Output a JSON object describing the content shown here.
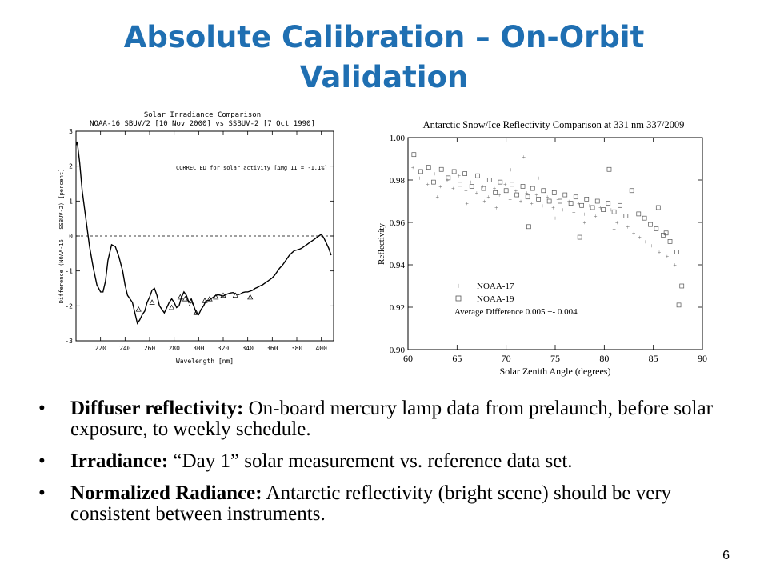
{
  "slide": {
    "title_line1": "Absolute Calibration – On-Orbit",
    "title_line2": "Validation",
    "page_number": "6"
  },
  "bullets": [
    {
      "bold": "Diffuser reflectivity:",
      "text": " On-board mercury lamp data from prelaunch, before solar exposure, to weekly schedule."
    },
    {
      "bold": "Irradiance:",
      "text": " “Day 1” solar measurement vs. reference data set."
    },
    {
      "bold": "Normalized Radiance:",
      "text": " Antarctic reflectivity (bright scene) should be very consistent between instruments."
    }
  ],
  "chart_data": [
    {
      "type": "line",
      "title": "Solar Irradiance Comparison",
      "subtitle": "NOAA-16 SBUV/2 [10 Nov 2000] vs SSBUV-2 [7 Oct 1990]",
      "annotation": "CORRECTED for solar activity [ΔMg II = -1.1%]",
      "xlabel": "Wavelength [nm]",
      "ylabel": "Difference (NOAA-16 – SSBUV-2) [percent]",
      "xlim": [
        200,
        410
      ],
      "ylim": [
        -3,
        3
      ],
      "xticks": [
        220,
        240,
        260,
        280,
        300,
        320,
        340,
        360,
        380,
        400
      ],
      "yticks": [
        3,
        2,
        1,
        0,
        -1,
        -2,
        -3
      ],
      "reference_line": 0,
      "series": [
        {
          "marker": "line",
          "x": [
            200,
            201,
            203,
            205,
            208,
            211,
            214,
            217,
            220,
            222,
            224,
            226,
            229,
            232,
            235,
            238,
            240,
            242,
            244,
            246,
            248,
            250,
            252,
            254,
            256,
            258,
            260,
            262,
            264,
            266,
            268,
            270,
            272,
            274,
            276,
            278,
            280,
            282,
            284,
            286,
            288,
            290,
            292,
            294,
            296,
            298,
            300,
            302,
            304,
            306,
            308,
            310,
            312,
            314,
            316,
            318,
            320,
            322,
            324,
            326,
            328,
            330,
            332,
            334,
            336,
            338,
            340,
            342,
            344,
            346,
            348,
            350,
            352,
            354,
            356,
            358,
            360,
            362,
            364,
            366,
            368,
            370,
            372,
            374,
            376,
            378,
            380,
            382,
            384,
            386,
            388,
            390,
            392,
            394,
            396,
            398,
            400,
            402,
            404,
            406,
            408
          ],
          "y": [
            2.6,
            2.7,
            2.1,
            1.3,
            0.5,
            -0.3,
            -0.9,
            -1.4,
            -1.6,
            -1.6,
            -1.3,
            -0.7,
            -0.25,
            -0.3,
            -0.6,
            -1.0,
            -1.4,
            -1.7,
            -1.8,
            -1.9,
            -2.2,
            -2.5,
            -2.4,
            -2.25,
            -2.15,
            -1.9,
            -1.75,
            -1.55,
            -1.5,
            -1.7,
            -2.0,
            -2.1,
            -2.2,
            -2.05,
            -1.9,
            -1.8,
            -1.9,
            -2.05,
            -2.0,
            -1.75,
            -1.6,
            -1.7,
            -1.9,
            -1.8,
            -2.0,
            -2.2,
            -2.25,
            -2.1,
            -2.0,
            -1.85,
            -1.85,
            -1.8,
            -1.75,
            -1.7,
            -1.68,
            -1.7,
            -1.72,
            -1.68,
            -1.65,
            -1.63,
            -1.62,
            -1.65,
            -1.68,
            -1.66,
            -1.62,
            -1.6,
            -1.6,
            -1.58,
            -1.55,
            -1.5,
            -1.47,
            -1.43,
            -1.4,
            -1.35,
            -1.3,
            -1.25,
            -1.2,
            -1.12,
            -1.02,
            -0.92,
            -0.85,
            -0.75,
            -0.65,
            -0.55,
            -0.48,
            -0.42,
            -0.4,
            -0.38,
            -0.35,
            -0.3,
            -0.25,
            -0.2,
            -0.15,
            -0.1,
            -0.05,
            0.0,
            0.05,
            -0.05,
            -0.2,
            -0.35,
            -0.55
          ]
        },
        {
          "marker": "triangle",
          "x": [
            251,
            262,
            278,
            285,
            289,
            294,
            298,
            305,
            309,
            314,
            320,
            330,
            342
          ],
          "y": [
            -2.1,
            -1.9,
            -2.05,
            -1.75,
            -1.8,
            -1.95,
            -2.2,
            -1.85,
            -1.8,
            -1.75,
            -1.7,
            -1.7,
            -1.75
          ]
        }
      ]
    },
    {
      "type": "scatter",
      "title": "Antarctic Snow/Ice Reflectivity Comparison at 331 nm 337/2009",
      "xlabel": "Solar Zenith Angle (degrees)",
      "ylabel": "Reflectivity",
      "xlim": [
        60,
        90
      ],
      "ylim": [
        0.9,
        1.0
      ],
      "xticks": [
        60,
        65,
        70,
        75,
        80,
        85,
        90
      ],
      "yticks": [
        "1.00",
        "0.98",
        "0.96",
        "0.94",
        "0.92",
        "0.90"
      ],
      "legend_position": "bottom-left",
      "annotation": "Average Difference  0.005 +- 0.004",
      "series": [
        {
          "name": "NOAA-17",
          "marker": "plus",
          "x": [
            60.5,
            61.2,
            62.0,
            62.7,
            63.3,
            64.0,
            64.6,
            65.2,
            65.9,
            66.4,
            67.0,
            67.6,
            68.2,
            68.8,
            69.3,
            69.9,
            70.4,
            71.0,
            71.5,
            72.1,
            72.6,
            73.1,
            73.7,
            74.2,
            74.8,
            75.3,
            75.8,
            76.4,
            76.9,
            77.4,
            78.0,
            78.5,
            79.1,
            79.6,
            80.2,
            80.7,
            81.3,
            81.8,
            82.4,
            83.0,
            83.6,
            84.2,
            84.8,
            85.6,
            86.4,
            87.2,
            63.0,
            66.0,
            69.0,
            72.0,
            75.0,
            78.0,
            81.0,
            71.8,
            73.3,
            70.5,
            67.8
          ],
          "y": [
            0.986,
            0.981,
            0.978,
            0.983,
            0.977,
            0.98,
            0.976,
            0.982,
            0.975,
            0.979,
            0.974,
            0.977,
            0.972,
            0.976,
            0.973,
            0.978,
            0.971,
            0.975,
            0.97,
            0.974,
            0.969,
            0.973,
            0.968,
            0.972,
            0.967,
            0.971,
            0.966,
            0.97,
            0.965,
            0.969,
            0.964,
            0.968,
            0.963,
            0.967,
            0.962,
            0.966,
            0.96,
            0.964,
            0.958,
            0.955,
            0.953,
            0.951,
            0.949,
            0.946,
            0.944,
            0.94,
            0.972,
            0.969,
            0.967,
            0.964,
            0.962,
            0.96,
            0.957,
            0.991,
            0.981,
            0.985,
            0.97
          ]
        },
        {
          "name": "NOAA-19",
          "marker": "square",
          "x": [
            60.6,
            61.3,
            62.1,
            62.6,
            63.4,
            64.1,
            64.7,
            65.3,
            65.8,
            66.5,
            67.1,
            67.7,
            68.3,
            68.9,
            69.4,
            70.0,
            70.6,
            71.1,
            71.7,
            72.2,
            72.7,
            73.3,
            73.8,
            74.4,
            74.9,
            75.5,
            76.0,
            76.6,
            77.1,
            77.7,
            78.2,
            78.8,
            79.3,
            79.9,
            80.4,
            81.0,
            81.6,
            82.2,
            82.8,
            83.5,
            84.1,
            84.7,
            85.3,
            86.0,
            86.7,
            87.4,
            87.9,
            77.5,
            72.3,
            80.5,
            85.5,
            86.3,
            87.6
          ],
          "y": [
            0.992,
            0.984,
            0.986,
            0.979,
            0.985,
            0.981,
            0.984,
            0.978,
            0.983,
            0.977,
            0.982,
            0.976,
            0.98,
            0.974,
            0.979,
            0.975,
            0.978,
            0.973,
            0.977,
            0.972,
            0.976,
            0.971,
            0.975,
            0.97,
            0.974,
            0.97,
            0.973,
            0.969,
            0.972,
            0.968,
            0.971,
            0.967,
            0.97,
            0.966,
            0.969,
            0.965,
            0.968,
            0.963,
            0.975,
            0.964,
            0.962,
            0.959,
            0.957,
            0.954,
            0.951,
            0.946,
            0.93,
            0.953,
            0.958,
            0.985,
            0.967,
            0.955,
            0.921
          ]
        }
      ]
    }
  ]
}
